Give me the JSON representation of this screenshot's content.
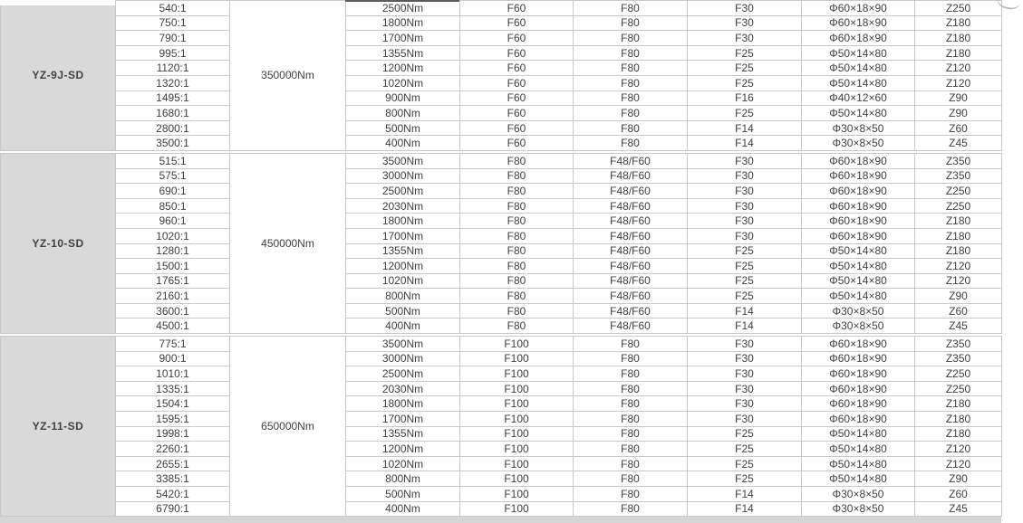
{
  "page": {
    "colors": {
      "model_cell_bg": "#d9d9d9",
      "grid_line": "#c9c9c9",
      "data_text": "#414141",
      "model_text": "#1b1b1b"
    }
  },
  "table": {
    "sections": [
      {
        "model": "YZ-9J-SD",
        "torque": "350000Nm",
        "rows": [
          [
            "540:1",
            "2500Nm",
            "F60",
            "F80",
            "F30",
            "Φ60×18×90",
            "Z250"
          ],
          [
            "750:1",
            "1800Nm",
            "F60",
            "F80",
            "F30",
            "Φ60×18×90",
            "Z180"
          ],
          [
            "790:1",
            "1700Nm",
            "F60",
            "F80",
            "F30",
            "Φ60×18×90",
            "Z180"
          ],
          [
            "995:1",
            "1355Nm",
            "F60",
            "F80",
            "F25",
            "Φ50×14×80",
            "Z180"
          ],
          [
            "1120:1",
            "1200Nm",
            "F60",
            "F80",
            "F25",
            "Φ50×14×80",
            "Z120"
          ],
          [
            "1320:1",
            "1020Nm",
            "F60",
            "F80",
            "F25",
            "Φ50×14×80",
            "Z120"
          ],
          [
            "1495:1",
            "900Nm",
            "F60",
            "F80",
            "F16",
            "Φ40×12×60",
            "Z90"
          ],
          [
            "1680:1",
            "800Nm",
            "F60",
            "F80",
            "F25",
            "Φ50×14×80",
            "Z90"
          ],
          [
            "2800:1",
            "500Nm",
            "F60",
            "F80",
            "F14",
            "Φ30×8×50",
            "Z60"
          ],
          [
            "3500:1",
            "400Nm",
            "F60",
            "F80",
            "F14",
            "Φ30×8×50",
            "Z45"
          ]
        ]
      },
      {
        "model": "YZ-10-SD",
        "torque": "450000Nm",
        "rows": [
          [
            "515:1",
            "3500Nm",
            "F80",
            "F48/F60",
            "F30",
            "Φ60×18×90",
            "Z350"
          ],
          [
            "575:1",
            "3000Nm",
            "F80",
            "F48/F60",
            "F30",
            "Φ60×18×90",
            "Z350"
          ],
          [
            "690:1",
            "2500Nm",
            "F80",
            "F48/F60",
            "F30",
            "Φ60×18×90",
            "Z250"
          ],
          [
            "850:1",
            "2030Nm",
            "F80",
            "F48/F60",
            "F30",
            "Φ60×18×90",
            "Z250"
          ],
          [
            "960:1",
            "1800Nm",
            "F80",
            "F48/F60",
            "F30",
            "Φ60×18×90",
            "Z180"
          ],
          [
            "1020:1",
            "1700Nm",
            "F80",
            "F48/F60",
            "F30",
            "Φ60×18×90",
            "Z180"
          ],
          [
            "1280:1",
            "1355Nm",
            "F80",
            "F48/F60",
            "F25",
            "Φ50×14×80",
            "Z180"
          ],
          [
            "1500:1",
            "1200Nm",
            "F80",
            "F48/F60",
            "F25",
            "Φ50×14×80",
            "Z120"
          ],
          [
            "1765:1",
            "1020Nm",
            "F80",
            "F48/F60",
            "F25",
            "Φ50×14×80",
            "Z120"
          ],
          [
            "2160:1",
            "800Nm",
            "F80",
            "F48/F60",
            "F25",
            "Φ50×14×80",
            "Z90"
          ],
          [
            "3600:1",
            "500Nm",
            "F80",
            "F48/F60",
            "F14",
            "Φ30×8×50",
            "Z60"
          ],
          [
            "4500:1",
            "400Nm",
            "F80",
            "F48/F60",
            "F14",
            "Φ30×8×50",
            "Z45"
          ]
        ]
      },
      {
        "model": "YZ-11-SD",
        "torque": "650000Nm",
        "rows": [
          [
            "775:1",
            "3500Nm",
            "F100",
            "F80",
            "F30",
            "Φ60×18×90",
            "Z350"
          ],
          [
            "900:1",
            "3000Nm",
            "F100",
            "F80",
            "F30",
            "Φ60×18×90",
            "Z350"
          ],
          [
            "1010:1",
            "2500Nm",
            "F100",
            "F80",
            "F30",
            "Φ60×18×90",
            "Z250"
          ],
          [
            "1335:1",
            "2030Nm",
            "F100",
            "F80",
            "F30",
            "Φ60×18×90",
            "Z250"
          ],
          [
            "1504:1",
            "1800Nm",
            "F100",
            "F80",
            "F30",
            "Φ60×18×90",
            "Z180"
          ],
          [
            "1595:1",
            "1700Nm",
            "F100",
            "F80",
            "F30",
            "Φ60×18×90",
            "Z180"
          ],
          [
            "1998:1",
            "1355Nm",
            "F100",
            "F80",
            "F25",
            "Φ50×14×80",
            "Z180"
          ],
          [
            "2260:1",
            "1200Nm",
            "F100",
            "F80",
            "F25",
            "Φ50×14×80",
            "Z120"
          ],
          [
            "2655:1",
            "1020Nm",
            "F100",
            "F80",
            "F25",
            "Φ50×14×80",
            "Z120"
          ],
          [
            "3385:1",
            "800Nm",
            "F100",
            "F80",
            "F25",
            "Φ50×14×80",
            "Z90"
          ],
          [
            "5420:1",
            "500Nm",
            "F100",
            "F80",
            "F14",
            "Φ30×8×50",
            "Z60"
          ],
          [
            "6790:1",
            "400Nm",
            "F100",
            "F80",
            "F14",
            "Φ30×8×50",
            "Z45"
          ]
        ]
      }
    ]
  }
}
